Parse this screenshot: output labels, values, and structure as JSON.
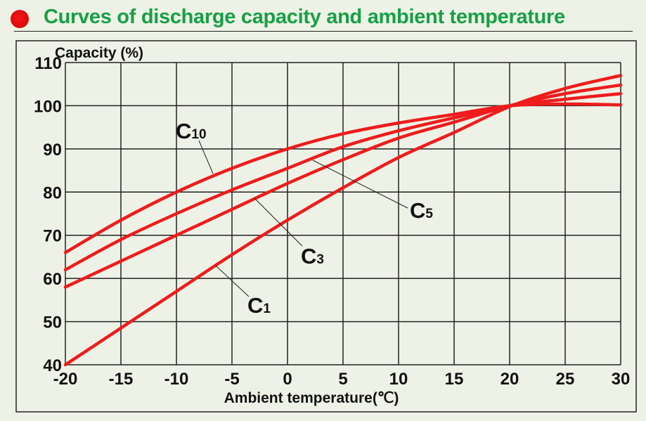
{
  "header": {
    "title": "Curves of discharge capacity and ambient temperature"
  },
  "colors": {
    "title": "#16a045",
    "bullet": "#e00000",
    "curve": "#ee1c1c",
    "background": "#eef2e6",
    "grid": "#222222"
  },
  "chart_data": {
    "type": "line",
    "title": "Curves of discharge capacity and ambient temperature",
    "xlabel": "Ambient temperature(℃)",
    "ylabel": "Capacity (%)",
    "xlim": [
      -20,
      30
    ],
    "ylim": [
      40,
      110
    ],
    "grid": true,
    "x_ticks": [
      "-20",
      "-15",
      "-10",
      "-5",
      "0",
      "5",
      "10",
      "15",
      "20",
      "25",
      "30"
    ],
    "y_ticks": [
      "40",
      "50",
      "60",
      "70",
      "80",
      "90",
      "100",
      "110"
    ],
    "x": [
      -20,
      -15,
      -10,
      -5,
      0,
      5,
      10,
      15,
      20,
      25,
      30
    ],
    "series": [
      {
        "name": "C10",
        "base": "C",
        "sub": "10",
        "values": [
          66,
          73.5,
          80,
          85.5,
          90,
          93.5,
          96,
          98,
          100,
          100.4,
          100.2
        ]
      },
      {
        "name": "C5",
        "base": "C",
        "sub": "5",
        "values": [
          62,
          69,
          75,
          80.5,
          85.5,
          90.5,
          94.2,
          97.2,
          100,
          101.5,
          102.8
        ]
      },
      {
        "name": "C3",
        "base": "C",
        "sub": "3",
        "values": [
          58,
          64,
          70,
          76,
          82,
          87.5,
          92.5,
          96.2,
          100,
          102.8,
          104.8
        ]
      },
      {
        "name": "C1",
        "base": "C",
        "sub": "1",
        "values": [
          40,
          48.5,
          57,
          65.5,
          73.5,
          81,
          88,
          93.8,
          99.8,
          104,
          107
        ]
      }
    ]
  }
}
